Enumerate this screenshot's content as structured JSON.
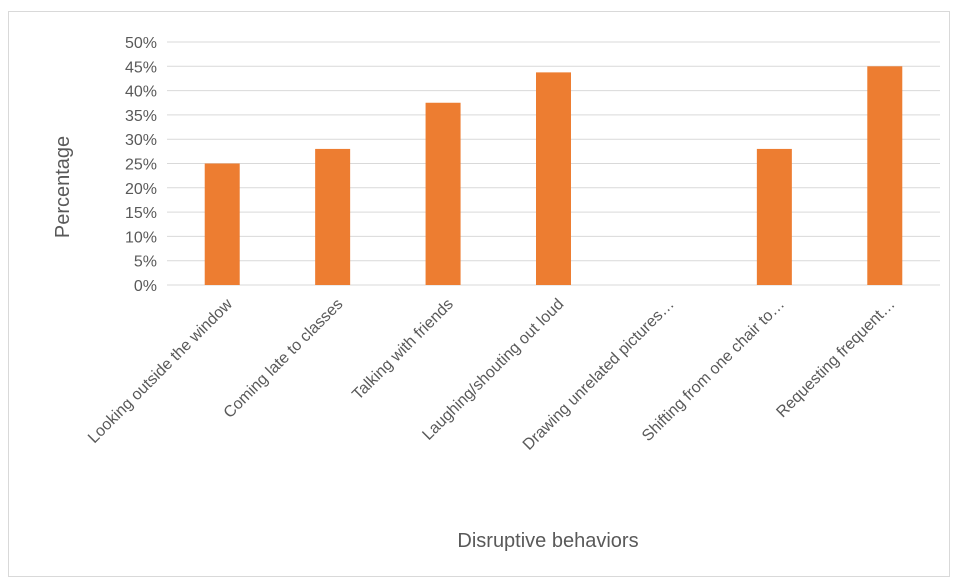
{
  "chart_data": {
    "type": "bar",
    "title": "",
    "xlabel": "Disruptive behaviors",
    "ylabel": "Percentage",
    "categories": [
      "Looking outside the window",
      "Coming late to classes",
      "Talking with friends",
      "Laughing/shouting out loud",
      "Drawing unrelated pictures…",
      "Shifting from one chair to…",
      "Requesting frequent…"
    ],
    "values": [
      25,
      28,
      37.5,
      43.75,
      0,
      28,
      45
    ],
    "ylim": [
      0,
      50
    ],
    "yticks": [
      "0%",
      "5%",
      "10%",
      "15%",
      "20%",
      "25%",
      "30%",
      "35%",
      "40%",
      "45%",
      "50%"
    ],
    "grid": true,
    "legend": "none",
    "bar_color": "#ED7D31",
    "grid_color": "#D9D9D9"
  }
}
